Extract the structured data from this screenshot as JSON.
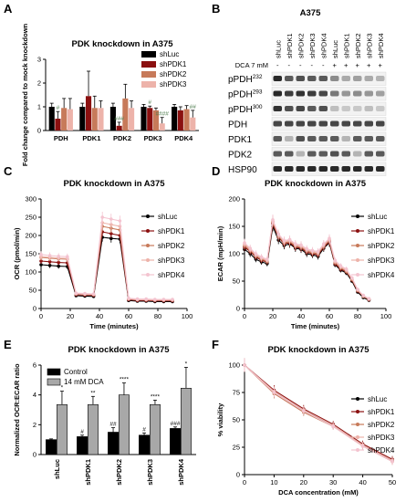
{
  "panels": {
    "A": {
      "letter": "A",
      "chart_data": {
        "type": "bar",
        "title": "PDK knockdown in A375",
        "ylabel": "Fold change compared to mock knockdown",
        "ylim": [
          0,
          3
        ],
        "yticks": [
          "0",
          "1",
          "2",
          "3"
        ],
        "categories": [
          "PDH",
          "PDK1",
          "PDK2",
          "PDK3",
          "PDK4"
        ],
        "series": [
          {
            "name": "shLuc",
            "color": "#000000",
            "values": [
              1.0,
              1.0,
              1.0,
              1.0,
              1.0
            ],
            "err": [
              0.15,
              0.15,
              0.15,
              0.1,
              0.1
            ]
          },
          {
            "name": "shPDK1",
            "color": "#8B1010",
            "values": [
              0.5,
              1.45,
              0.2,
              0.95,
              0.85
            ],
            "err": [
              0.3,
              1.05,
              0.15,
              0.08,
              0.15
            ]
          },
          {
            "name": "shPDK2",
            "color": "#C77A5A",
            "values": [
              0.95,
              0.95,
              1.35,
              0.85,
              0.9
            ],
            "err": [
              0.4,
              0.5,
              0.6,
              0.1,
              0.15
            ]
          },
          {
            "name": "shPDK3",
            "color": "#EDB3AA",
            "values": [
              0.9,
              0.95,
              0.95,
              0.3,
              0.55
            ],
            "err": [
              0.45,
              0.3,
              0.3,
              0.25,
              0.3
            ]
          }
        ],
        "legend": "top-right",
        "annotations": [
          {
            "cat": 0,
            "series": 1,
            "text": "#"
          },
          {
            "cat": 2,
            "series": 1,
            "text": "###"
          },
          {
            "cat": 3,
            "series": 1,
            "text": "#"
          },
          {
            "cat": 3,
            "series": 3,
            "text": "####"
          },
          {
            "cat": 4,
            "series": 3,
            "text": "##"
          }
        ]
      }
    },
    "B": {
      "letter": "B",
      "title": "A375",
      "dca_label": "DCA 7 mM",
      "lanes": [
        "shLuc",
        "shPDK1",
        "shPDK2",
        "shPDK3",
        "shPDK4",
        "shLuc",
        "shPDK1",
        "shPDK2",
        "shPDK3",
        "shPDK4"
      ],
      "dca": [
        "-",
        "-",
        "-",
        "-",
        "-",
        "+",
        "+",
        "+",
        "+",
        "+"
      ],
      "rows": [
        {
          "label": "pPDH",
          "sup": "232",
          "intensity": [
            0.95,
            0.7,
            0.75,
            0.7,
            0.7,
            0.45,
            0.3,
            0.35,
            0.3,
            0.25
          ]
        },
        {
          "label": "pPDH",
          "sup": "293",
          "intensity": [
            0.95,
            0.85,
            0.9,
            0.85,
            0.8,
            0.55,
            0.4,
            0.45,
            0.4,
            0.35
          ]
        },
        {
          "label": "pPDH",
          "sup": "300",
          "intensity": [
            0.9,
            0.75,
            0.8,
            0.7,
            0.75,
            0.2,
            0.15,
            0.15,
            0.2,
            0.15
          ]
        },
        {
          "label": "PDH",
          "sup": "",
          "intensity": [
            0.8,
            0.8,
            0.8,
            0.8,
            0.8,
            0.8,
            0.8,
            0.8,
            0.8,
            0.8
          ]
        },
        {
          "label": "PDK1",
          "sup": "",
          "intensity": [
            0.7,
            0.25,
            0.75,
            0.7,
            0.7,
            0.7,
            0.25,
            0.7,
            0.7,
            0.7
          ]
        },
        {
          "label": "PDK2",
          "sup": "",
          "intensity": [
            0.7,
            0.7,
            0.25,
            0.7,
            0.7,
            0.75,
            0.7,
            0.25,
            0.7,
            0.7
          ]
        },
        {
          "label": "HSP90",
          "sup": "",
          "intensity": [
            0.95,
            0.95,
            0.95,
            0.95,
            0.95,
            0.95,
            0.95,
            0.95,
            0.95,
            0.95
          ]
        }
      ]
    },
    "C": {
      "letter": "C",
      "chart_data": {
        "type": "line",
        "title": "PDK knockdown in A375",
        "xlabel": "Time (minutes)",
        "ylabel": "OCR (pmol/min)",
        "xlim": [
          0,
          100
        ],
        "ylim": [
          0,
          300
        ],
        "xticks": [
          "0",
          "20",
          "40",
          "60",
          "80",
          "100"
        ],
        "yticks": [
          "0",
          "50",
          "100",
          "150",
          "200",
          "250",
          "300"
        ],
        "x": [
          0,
          6,
          12,
          18,
          24,
          30,
          36,
          42,
          48,
          54,
          60,
          66,
          72,
          78,
          84,
          90
        ],
        "series": [
          {
            "name": "shLuc",
            "color": "#000000",
            "values": [
              120,
              118,
              116,
              115,
              35,
              34,
              33,
              195,
              192,
              190,
              22,
              20,
              20,
              19,
              19,
              19
            ]
          },
          {
            "name": "shPDK1",
            "color": "#8B1010",
            "values": [
              130,
              128,
              126,
              125,
              38,
              37,
              36,
              210,
              205,
              200,
              24,
              22,
              22,
              21,
              21,
              21
            ]
          },
          {
            "name": "shPDK2",
            "color": "#C77A5A",
            "values": [
              140,
              138,
              136,
              135,
              40,
              39,
              38,
              225,
              220,
              215,
              26,
              24,
              24,
              23,
              23,
              23
            ]
          },
          {
            "name": "shPDK3",
            "color": "#EDB3AA",
            "values": [
              142,
              140,
              138,
              137,
              40,
              39,
              38,
              235,
              230,
              225,
              26,
              24,
              24,
              23,
              23,
              23
            ]
          },
          {
            "name": "shPDK4",
            "color": "#F4C4D0",
            "values": [
              148,
              145,
              143,
              142,
              42,
              41,
              40,
              250,
              245,
              240,
              28,
              26,
              26,
              25,
              25,
              25
            ]
          }
        ],
        "legend": "right"
      }
    },
    "D": {
      "letter": "D",
      "chart_data": {
        "type": "line",
        "title": "PDK knockdown in A375",
        "xlabel": "Time (minutes)",
        "ylabel": "ECAR (mpH/min)",
        "xlim": [
          0,
          100
        ],
        "ylim": [
          0,
          200
        ],
        "xticks": [
          "0",
          "20",
          "40",
          "60",
          "80",
          "100"
        ],
        "yticks": [
          "0",
          "50",
          "100",
          "150",
          "200"
        ],
        "x": [
          0,
          4,
          8,
          12,
          16,
          20,
          24,
          28,
          32,
          36,
          40,
          44,
          48,
          52,
          56,
          60,
          64,
          68,
          72,
          76,
          80,
          84,
          88
        ],
        "series": [
          {
            "name": "shLuc",
            "color": "#000000",
            "values": [
              108,
              100,
              90,
              85,
              82,
              150,
              125,
              115,
              118,
              110,
              108,
              100,
              98,
              95,
              110,
              120,
              80,
              70,
              65,
              50,
              30,
              20,
              15
            ]
          },
          {
            "name": "shPDK1",
            "color": "#8B1010",
            "values": [
              112,
              104,
              94,
              88,
              85,
              155,
              130,
              118,
              120,
              112,
              110,
              103,
              100,
              98,
              112,
              122,
              82,
              72,
              67,
              52,
              32,
              22,
              16
            ]
          },
          {
            "name": "shPDK2",
            "color": "#C77A5A",
            "values": [
              115,
              106,
              96,
              90,
              86,
              158,
              132,
              120,
              122,
              114,
              112,
              105,
              102,
              100,
              114,
              124,
              84,
              74,
              68,
              53,
              33,
              22,
              17
            ]
          },
          {
            "name": "shPDK3",
            "color": "#EDB3AA",
            "values": [
              118,
              108,
              98,
              92,
              88,
              160,
              134,
              122,
              124,
              116,
              114,
              107,
              104,
              102,
              116,
              126,
              86,
              76,
              70,
              55,
              34,
              23,
              17
            ]
          },
          {
            "name": "shPDK4",
            "color": "#F4C4D0",
            "values": [
              120,
              110,
              100,
              94,
              90,
              162,
              136,
              124,
              126,
              118,
              116,
              109,
              106,
              104,
              118,
              128,
              88,
              78,
              72,
              56,
              35,
              24,
              18
            ]
          }
        ],
        "legend": "right"
      }
    },
    "E": {
      "letter": "E",
      "chart_data": {
        "type": "bar",
        "title": "PDK knockdown in A375",
        "ylabel": "Normalized OCR:ECAR ratio",
        "ylim": [
          0,
          6
        ],
        "yticks": [
          "0",
          "2",
          "4",
          "6"
        ],
        "categories": [
          "shLuc",
          "shPDK1",
          "shPDK2",
          "shPDK3",
          "shPDK4"
        ],
        "series": [
          {
            "name": "Control",
            "color": "#000000",
            "values": [
              1.0,
              1.2,
              1.5,
              1.3,
              1.75
            ],
            "err": [
              0.05,
              0.1,
              0.3,
              0.15,
              0.1
            ],
            "labels": [
              "",
              "#",
              "##",
              "#",
              "###"
            ]
          },
          {
            "name": "14 mM DCA",
            "color": "#A8A8A8",
            "values": [
              3.35,
              3.35,
              4.0,
              3.35,
              4.45
            ],
            "err": [
              0.9,
              0.55,
              0.8,
              0.3,
              1.4
            ],
            "labels": [
              "*",
              "**",
              "****",
              "****",
              "*"
            ]
          }
        ],
        "legend": "top-left"
      }
    },
    "F": {
      "letter": "F",
      "chart_data": {
        "type": "line",
        "title": "PDK knockdown in A375",
        "xlabel": "DCA concentration (mM)",
        "ylabel": "% viability",
        "xlim": [
          0,
          50
        ],
        "ylim": [
          0,
          100
        ],
        "xticks": [
          "0",
          "10",
          "20",
          "30",
          "40",
          "50"
        ],
        "yticks": [
          "0",
          "25",
          "50",
          "75",
          "100"
        ],
        "x": [
          0,
          10,
          20,
          30,
          40,
          50
        ],
        "series": [
          {
            "name": "shLuc",
            "color": "#000000",
            "values": [
              100,
              75,
              58,
              45,
              27,
              13
            ]
          },
          {
            "name": "shPDK1",
            "color": "#8B1010",
            "values": [
              100,
              77,
              60,
              46,
              28,
              14
            ]
          },
          {
            "name": "shPDK2",
            "color": "#C77A5A",
            "values": [
              100,
              74,
              57,
              44,
              26,
              12
            ]
          },
          {
            "name": "shPDK3",
            "color": "#EDB3AA",
            "values": [
              100,
              76,
              59,
              45,
              27,
              13
            ]
          },
          {
            "name": "shPDK4",
            "color": "#F4C4D0",
            "values": [
              100,
              75,
              58,
              44,
              26,
              12
            ]
          }
        ],
        "legend": "right"
      }
    }
  }
}
